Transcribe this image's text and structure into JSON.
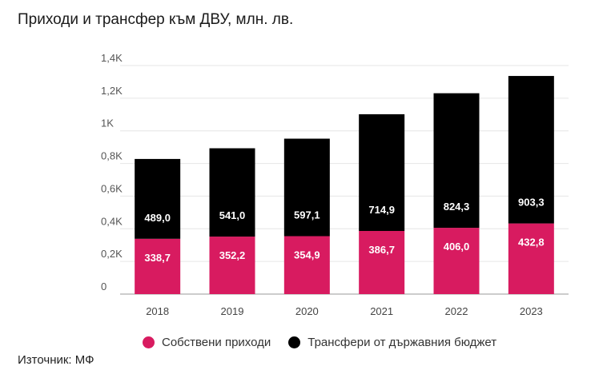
{
  "title": "Приходи и трансфер към ДВУ, млн. лв.",
  "source": "Източник: МФ",
  "colors": {
    "own": "#d81b60",
    "transfer": "#000000"
  },
  "chart_data": {
    "type": "bar",
    "stacked": true,
    "categories": [
      "2018",
      "2019",
      "2020",
      "2021",
      "2022",
      "2023"
    ],
    "series": [
      {
        "name": "Собствени приходи",
        "values": [
          338.7,
          352.2,
          354.9,
          386.7,
          406.0,
          432.8
        ],
        "labels": [
          "338,7",
          "352,2",
          "354,9",
          "386,7",
          "406,0",
          "432,8"
        ]
      },
      {
        "name": "Трансфери от държавния бюджет",
        "values": [
          489.0,
          541.0,
          597.1,
          714.9,
          824.3,
          903.3
        ],
        "labels": [
          "489,0",
          "541,0",
          "597,1",
          "714,9",
          "824,3",
          "903,3"
        ]
      }
    ],
    "ylim": [
      0,
      1400
    ],
    "yticks": [
      0,
      200,
      400,
      600,
      800,
      1000,
      1200,
      1400
    ],
    "ytick_labels": [
      "0",
      "0,2K",
      "0,4K",
      "0,6K",
      "0,8K",
      "1K",
      "1,2K",
      "1,4K"
    ],
    "grid": true,
    "legend_position": "bottom"
  }
}
